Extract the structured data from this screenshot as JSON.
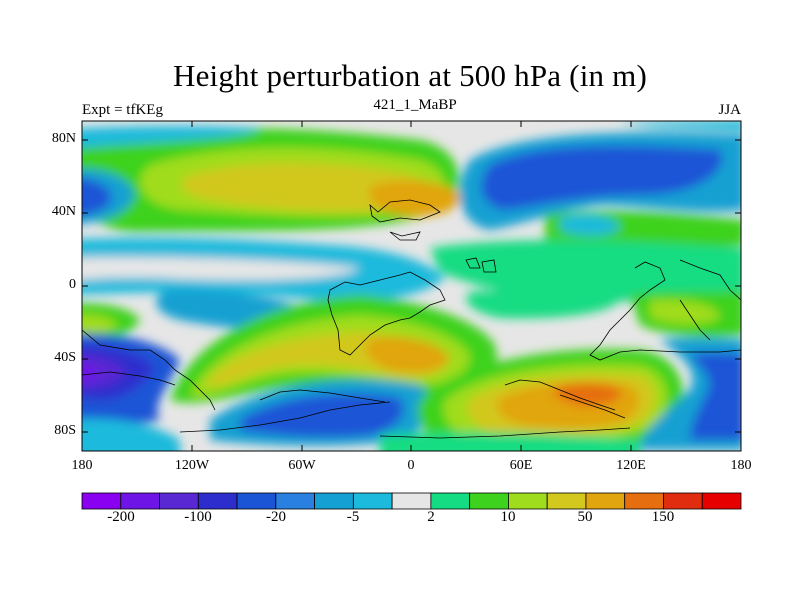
{
  "title": "Height perturbation at 500 hPa (in m)",
  "left_label": "Expt = tfKEg",
  "center_label": "421_1_MaBP",
  "right_label": "JJA",
  "map": {
    "projection": "cylindrical equidistant",
    "lon_range": [
      -180,
      180
    ],
    "lat_range": [
      -90,
      90
    ],
    "lat_tick_labels": [
      "80N",
      "40N",
      "0",
      "40S",
      "80S"
    ],
    "lon_tick_labels": [
      "180",
      "120W",
      "60W",
      "0",
      "60E",
      "120E",
      "180"
    ],
    "coastlines": true
  },
  "colorbar": {
    "colors": [
      "#8a00f0",
      "#6e14e6",
      "#5a28d2",
      "#2d2dcd",
      "#1a55d6",
      "#2a80e0",
      "#14a0d2",
      "#1cbadc",
      "#e6e6e6",
      "#14dc82",
      "#3cd21e",
      "#a0dc1e",
      "#d2c81e",
      "#e1a50f",
      "#e66e0f",
      "#e12d0f",
      "#e60000"
    ],
    "labels": [
      "-200",
      "-100",
      "-20",
      "-5",
      "2",
      "10",
      "50",
      "150"
    ]
  }
}
